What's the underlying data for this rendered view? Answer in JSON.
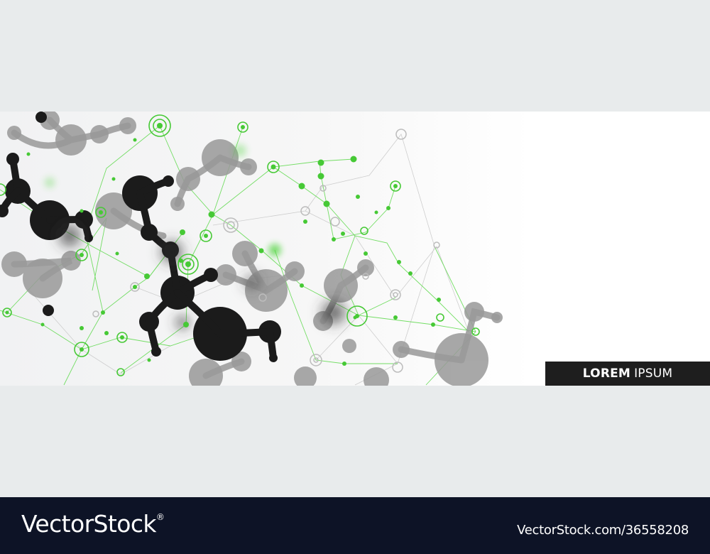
{
  "banner": {
    "title_strong": "LOREM",
    "title_light": "IPSUM"
  },
  "footer": {
    "brand": "VectorStock",
    "trademark": "®",
    "image_id": "VectorStock.com/36558208"
  },
  "colors": {
    "page_background": "#e8ebec",
    "accent_green": "#46c935",
    "molecule_dark": "#1b1b1b",
    "molecule_grey": "#9a9a9a",
    "label_background": "#1e1e1e",
    "footer_background": "#0d1326"
  }
}
